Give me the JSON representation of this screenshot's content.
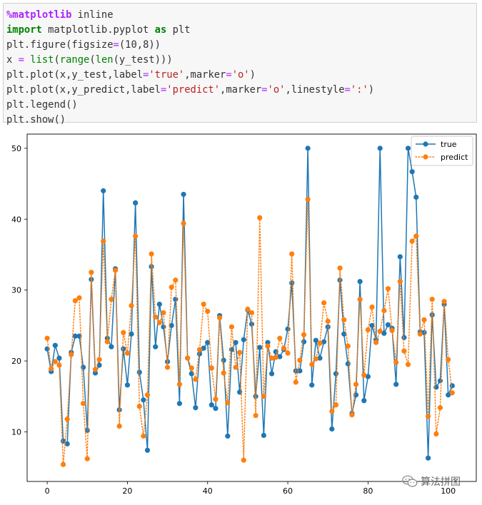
{
  "code_lines": [
    [
      {
        "t": "%matplotlib",
        "c": "mg"
      },
      {
        "t": " inline",
        "c": ""
      }
    ],
    [
      {
        "t": "import",
        "c": "kw"
      },
      {
        "t": " matplotlib.pyplot ",
        "c": ""
      },
      {
        "t": "as",
        "c": "kw"
      },
      {
        "t": " plt",
        "c": ""
      }
    ],
    [
      {
        "t": "plt.figure(figsize",
        "c": ""
      },
      {
        "t": "=",
        "c": "op"
      },
      {
        "t": "(10,8))",
        "c": ""
      }
    ],
    [
      {
        "t": "x ",
        "c": ""
      },
      {
        "t": "=",
        "c": "op"
      },
      {
        "t": " ",
        "c": ""
      },
      {
        "t": "list",
        "c": "nb"
      },
      {
        "t": "(",
        "c": ""
      },
      {
        "t": "range",
        "c": "nb"
      },
      {
        "t": "(",
        "c": ""
      },
      {
        "t": "len",
        "c": "nb"
      },
      {
        "t": "(y_test)))",
        "c": ""
      }
    ],
    [
      {
        "t": "plt.plot(x,y_test,label",
        "c": ""
      },
      {
        "t": "=",
        "c": "op"
      },
      {
        "t": "'true'",
        "c": "st"
      },
      {
        "t": ",marker",
        "c": ""
      },
      {
        "t": "=",
        "c": "op"
      },
      {
        "t": "'o'",
        "c": "st"
      },
      {
        "t": ")",
        "c": ""
      }
    ],
    [
      {
        "t": "plt.plot(x,y_predict,label",
        "c": ""
      },
      {
        "t": "=",
        "c": "op"
      },
      {
        "t": "'predict'",
        "c": "st"
      },
      {
        "t": ",marker",
        "c": ""
      },
      {
        "t": "=",
        "c": "op"
      },
      {
        "t": "'o'",
        "c": "st"
      },
      {
        "t": ",linestyle",
        "c": ""
      },
      {
        "t": "=",
        "c": "op"
      },
      {
        "t": "':'",
        "c": "st"
      },
      {
        "t": ")",
        "c": ""
      }
    ],
    [
      {
        "t": "plt.legend()",
        "c": ""
      }
    ],
    [
      {
        "t": "plt.show()",
        "c": ""
      }
    ]
  ],
  "watermark": "算法拼图",
  "chart_data": {
    "type": "line",
    "title": "",
    "xlabel": "",
    "ylabel": "",
    "xlim": [
      -5,
      107
    ],
    "ylim": [
      3,
      52
    ],
    "xticks": [
      0,
      20,
      40,
      60,
      80,
      100
    ],
    "yticks": [
      10,
      20,
      30,
      40,
      50
    ],
    "grid": false,
    "legend_position": "top-right",
    "x": [
      0,
      1,
      2,
      3,
      4,
      5,
      6,
      7,
      8,
      9,
      10,
      11,
      12,
      13,
      14,
      15,
      16,
      17,
      18,
      19,
      20,
      21,
      22,
      23,
      24,
      25,
      26,
      27,
      28,
      29,
      30,
      31,
      32,
      33,
      34,
      35,
      36,
      37,
      38,
      39,
      40,
      41,
      42,
      43,
      44,
      45,
      46,
      47,
      48,
      49,
      50,
      51,
      52,
      53,
      54,
      55,
      56,
      57,
      58,
      59,
      60,
      61,
      62,
      63,
      64,
      65,
      66,
      67,
      68,
      69,
      70,
      71,
      72,
      73,
      74,
      75,
      76,
      77,
      78,
      79,
      80,
      81,
      82,
      83,
      84,
      85,
      86,
      87,
      88,
      89,
      90,
      91,
      92,
      93,
      94,
      95,
      96,
      97,
      98,
      99,
      100,
      101
    ],
    "series": [
      {
        "name": "true",
        "color": "#1f77b4",
        "linestyle": "solid",
        "marker": "o",
        "values": [
          21.7,
          18.5,
          22.2,
          20.4,
          8.7,
          8.3,
          21.2,
          23.5,
          23.5,
          19.1,
          10.2,
          31.5,
          18.3,
          19.4,
          44.0,
          23.2,
          22.0,
          33.0,
          13.1,
          21.7,
          16.6,
          23.8,
          42.3,
          18.4,
          14.5,
          7.4,
          33.3,
          22.0,
          28.0,
          24.8,
          19.9,
          25.0,
          28.7,
          14.0,
          43.5,
          20.4,
          18.2,
          13.4,
          21.0,
          21.8,
          22.6,
          13.8,
          13.3,
          26.4,
          20.1,
          9.4,
          21.6,
          22.6,
          15.6,
          23.0,
          27.2,
          25.2,
          15.0,
          21.9,
          9.5,
          22.6,
          18.2,
          21.3,
          20.6,
          21.6,
          24.5,
          31.0,
          18.6,
          18.6,
          22.7,
          50.0,
          16.6,
          22.9,
          20.4,
          22.7,
          24.8,
          10.4,
          18.2,
          31.4,
          23.8,
          19.6,
          12.6,
          15.2,
          31.2,
          14.4,
          17.8,
          25.0,
          23.0,
          50.0,
          23.9,
          25.1,
          24.6,
          16.7,
          34.7,
          23.3,
          50.0,
          46.7,
          43.1,
          24.1,
          24.0,
          6.3,
          26.5,
          16.3,
          17.2,
          28.0,
          15.2,
          16.5
        ]
      },
      {
        "name": "predict",
        "color": "#ff7f0e",
        "linestyle": "dotted",
        "marker": "o",
        "values": [
          23.2,
          18.9,
          19.9,
          19.4,
          5.4,
          11.8,
          20.9,
          28.5,
          28.9,
          14.0,
          6.2,
          32.5,
          18.8,
          20.2,
          36.9,
          22.7,
          28.7,
          32.8,
          10.8,
          24.0,
          21.1,
          27.8,
          37.6,
          13.6,
          9.4,
          15.2,
          35.1,
          26.2,
          25.4,
          26.8,
          19.1,
          30.4,
          31.4,
          16.7,
          39.4,
          20.4,
          19.0,
          17.4,
          21.6,
          28.0,
          27.0,
          19.0,
          14.6,
          26.1,
          18.3,
          14.1,
          24.8,
          19.1,
          21.2,
          6.0,
          27.3,
          26.8,
          12.3,
          40.2,
          15.0,
          22.1,
          20.4,
          20.5,
          23.2,
          21.8,
          21.1,
          35.1,
          17.0,
          20.1,
          23.7,
          42.8,
          19.5,
          20.3,
          22.5,
          28.2,
          25.6,
          12.9,
          13.8,
          33.1,
          25.8,
          22.1,
          12.4,
          16.7,
          28.7,
          18.0,
          24.4,
          27.6,
          22.6,
          24.2,
          27.1,
          30.2,
          24.3,
          19.8,
          31.2,
          21.4,
          19.5,
          36.9,
          37.6,
          23.8,
          25.8,
          12.2,
          28.7,
          9.7,
          13.4,
          28.4,
          20.2,
          15.5
        ]
      }
    ]
  }
}
